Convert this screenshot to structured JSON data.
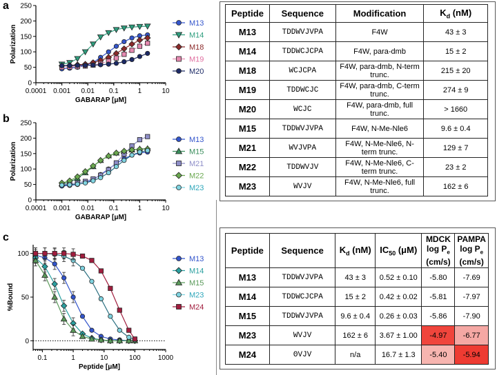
{
  "panels": {
    "a": "a",
    "b": "b",
    "c": "c"
  },
  "chart_data": [
    {
      "id": "a",
      "type": "scatter",
      "xlabel": "GABARAP [μM]",
      "ylabel": "Polarization",
      "xscale": "log",
      "xlim": [
        0.0001,
        10
      ],
      "ylim": [
        0,
        250
      ],
      "xticks": [
        "0.0001",
        "0.001",
        "0.01",
        "0.1",
        "1",
        "10"
      ],
      "yticks": [
        "0",
        "50",
        "100",
        "150",
        "200",
        "250"
      ],
      "x": [
        0.001,
        0.002,
        0.004,
        0.008,
        0.016,
        0.031,
        0.063,
        0.125,
        0.25,
        0.5,
        1,
        2
      ],
      "series": [
        {
          "name": "M13",
          "color": "#3355cc",
          "marker": "circle",
          "values": [
            45,
            47,
            50,
            56,
            65,
            82,
            100,
            118,
            133,
            145,
            152,
            155
          ]
        },
        {
          "name": "M14",
          "color": "#2e9e7e",
          "marker": "triangle-down",
          "values": [
            60,
            65,
            78,
            100,
            125,
            148,
            162,
            172,
            177,
            180,
            182,
            183
          ]
        },
        {
          "name": "M18",
          "color": "#8b2a2a",
          "marker": "diamond",
          "values": [
            55,
            56,
            58,
            60,
            65,
            72,
            82,
            95,
            110,
            125,
            138,
            145
          ]
        },
        {
          "name": "M19",
          "color": "#e589b0",
          "marker": "square",
          "values": [
            50,
            51,
            52,
            54,
            57,
            62,
            70,
            80,
            92,
            105,
            118,
            128
          ]
        },
        {
          "name": "M20",
          "color": "#1c2a66",
          "marker": "circle",
          "values": [
            55,
            55,
            56,
            56,
            57,
            58,
            60,
            63,
            68,
            75,
            85,
            95
          ]
        }
      ]
    },
    {
      "id": "b",
      "type": "scatter",
      "xlabel": "GABARAP [μM]",
      "ylabel": "Polarization",
      "xscale": "log",
      "xlim": [
        0.0001,
        10
      ],
      "ylim": [
        0,
        250
      ],
      "xticks": [
        "0.0001",
        "0.001",
        "0.01",
        "0.1",
        "1",
        "10"
      ],
      "yticks": [
        "0",
        "50",
        "100",
        "150",
        "200",
        "250"
      ],
      "x": [
        0.001,
        0.002,
        0.004,
        0.008,
        0.016,
        0.031,
        0.063,
        0.125,
        0.25,
        0.5,
        1,
        2
      ],
      "series": [
        {
          "name": "M13",
          "color": "#3355cc",
          "marker": "circle",
          "values": [
            45,
            47,
            50,
            56,
            65,
            82,
            100,
            118,
            133,
            145,
            152,
            155
          ]
        },
        {
          "name": "M15",
          "color": "#3a8e5c",
          "marker": "triangle-up",
          "values": [
            52,
            58,
            70,
            88,
            108,
            128,
            143,
            152,
            158,
            162,
            165,
            166
          ]
        },
        {
          "name": "M21",
          "color": "#8e8ec8",
          "marker": "square",
          "values": [
            50,
            52,
            55,
            60,
            68,
            80,
            98,
            120,
            148,
            175,
            195,
            205
          ]
        },
        {
          "name": "M22",
          "color": "#6aa84f",
          "marker": "diamond",
          "values": [
            55,
            62,
            75,
            92,
            110,
            128,
            142,
            152,
            158,
            162,
            164,
            165
          ]
        },
        {
          "name": "M23",
          "color": "#7fd3e0",
          "marker": "circle",
          "values": [
            48,
            49,
            51,
            55,
            62,
            72,
            88,
            108,
            128,
            145,
            155,
            160
          ]
        }
      ]
    },
    {
      "id": "c",
      "type": "scatter",
      "xlabel": "Peptide [μM]",
      "ylabel": "%Bound",
      "xscale": "log",
      "xlim": [
        0.05,
        1000
      ],
      "ylim": [
        -10,
        110
      ],
      "xticks": [
        "0.1",
        "1",
        "10",
        "100",
        "1000"
      ],
      "yticks": [
        "0",
        "50",
        "100"
      ],
      "x": [
        0.06,
        0.12,
        0.25,
        0.5,
        1,
        2,
        4,
        8,
        16,
        32,
        64,
        100
      ],
      "series": [
        {
          "name": "M13",
          "color": "#3355cc",
          "marker": "circle",
          "values": [
            98,
            95,
            88,
            72,
            50,
            28,
            12,
            5,
            2,
            1,
            0,
            0
          ]
        },
        {
          "name": "M14",
          "color": "#2aa0a0",
          "marker": "diamond",
          "values": [
            95,
            85,
            65,
            40,
            20,
            8,
            3,
            1,
            0,
            0,
            0,
            0
          ]
        },
        {
          "name": "M15",
          "color": "#5a9a5a",
          "marker": "triangle-up",
          "values": [
            92,
            75,
            50,
            25,
            12,
            5,
            2,
            1,
            0,
            0,
            0,
            0
          ]
        },
        {
          "name": "M23",
          "color": "#7fd3e0",
          "marker": "circle",
          "values": [
            100,
            100,
            99,
            97,
            92,
            83,
            68,
            48,
            28,
            12,
            4,
            1
          ]
        },
        {
          "name": "M24",
          "color": "#a11d3e",
          "marker": "square",
          "values": [
            100,
            100,
            100,
            100,
            99,
            97,
            92,
            80,
            60,
            35,
            12,
            2
          ]
        }
      ]
    }
  ],
  "table1": {
    "headers": [
      "Peptide",
      "Sequence",
      "Modification",
      "Kd (nM)"
    ],
    "kd_main": "K",
    "kd_sub": "d",
    "kd_unit": " (nM)",
    "rows": [
      {
        "peptide": "M13",
        "sequence": "TDDWVJVPA",
        "modification": "F4W",
        "kd": "43 ± 3"
      },
      {
        "peptide": "M14",
        "sequence": "TDDWCJCPA",
        "modification": "F4W, para-dmb",
        "kd": "15 ± 2"
      },
      {
        "peptide": "M18",
        "sequence": "WCJCPA",
        "modification": "F4W, para-dmb, N-term trunc.",
        "kd": "215 ± 20"
      },
      {
        "peptide": "M19",
        "sequence": "TDDWCJC",
        "modification": "F4W, para-dmb, C-term trunc.",
        "kd": "274 ± 9"
      },
      {
        "peptide": "M20",
        "sequence": "WCJC",
        "modification": "F4W, para-dmb, full trunc.",
        "kd": "> 1660"
      },
      {
        "peptide": "M15",
        "sequence": "TDDWVJVPA",
        "modification": "F4W, N-Me-Nle6",
        "kd": "9.6 ± 0.4"
      },
      {
        "peptide": "M21",
        "sequence": "WVJVPA",
        "modification": "F4W, N-Me-Nle6, N-term trunc.",
        "kd": "129 ± 7"
      },
      {
        "peptide": "M22",
        "sequence": "TDDWVJV",
        "modification": "F4W, N-Me-Nle6, C-term trunc.",
        "kd": "23 ± 2"
      },
      {
        "peptide": "M23",
        "sequence": "WVJV",
        "modification": "F4W, N-Me-Nle6, full trunc.",
        "kd": "162 ± 6"
      }
    ]
  },
  "table2": {
    "headers": [
      "Peptide",
      "Sequence",
      "Kd (nM)",
      "IC50 (μM)",
      "MDCK log Pe (cm/s)",
      "PAMPA log Pe (cm/s)"
    ],
    "ic_main": "IC",
    "ic_sub": "50",
    "ic_unit": " (μM)",
    "mdck": "MDCK",
    "pampa": "PAMPA",
    "logp": "log P",
    "logp_sub": "e",
    "cms": "(cm/s)",
    "rows": [
      {
        "peptide": "M13",
        "sequence": "TDDWVJVPA",
        "kd": "43 ± 3",
        "ic50": "0.52 ± 0.10",
        "mdck": "-5.80",
        "pampa": "-7.69",
        "mdck_color": "#ffffff",
        "pampa_color": "#ffffff"
      },
      {
        "peptide": "M14",
        "sequence": "TDDWCJCPA",
        "kd": "15 ± 2",
        "ic50": "0.42 ± 0.02",
        "mdck": "-5.81",
        "pampa": "-7.97",
        "mdck_color": "#ffffff",
        "pampa_color": "#ffffff"
      },
      {
        "peptide": "M15",
        "sequence": "TDDWVJVPA",
        "kd": "9.6 ± 0.4",
        "ic50": "0.26 ± 0.03",
        "mdck": "-5.86",
        "pampa": "-7.90",
        "mdck_color": "#ffffff",
        "pampa_color": "#ffffff"
      },
      {
        "peptide": "M23",
        "sequence": "WVJV",
        "kd": "162 ± 6",
        "ic50": "3.67 ± 1.00",
        "mdck": "-4.97",
        "pampa": "-6.77",
        "mdck_color": "#f0453c",
        "pampa_color": "#f5a8a4"
      },
      {
        "peptide": "M24",
        "sequence": "ʘVJV",
        "kd": "n/a",
        "ic50": "16.7 ± 1.3",
        "mdck": "-5.40",
        "pampa": "-5.94",
        "mdck_color": "#f7b5b0",
        "pampa_color": "#ee3b32"
      }
    ]
  }
}
